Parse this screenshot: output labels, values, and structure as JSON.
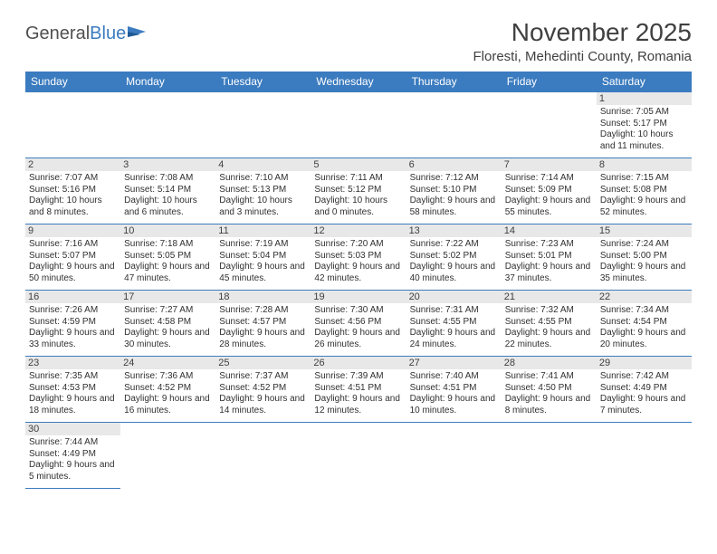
{
  "logo": {
    "text1": "General",
    "text2": "Blue"
  },
  "title": "November 2025",
  "location": "Floresti, Mehedinti County, Romania",
  "days_of_week": [
    "Sunday",
    "Monday",
    "Tuesday",
    "Wednesday",
    "Thursday",
    "Friday",
    "Saturday"
  ],
  "colors": {
    "header_bg": "#3b7bbf",
    "header_fg": "#ffffff",
    "daynum_bg": "#e8e8e8",
    "border": "#3b7bbf",
    "text": "#303030"
  },
  "layout": {
    "first_weekday_index": 6,
    "num_days": 30,
    "rows": 6,
    "cols": 7
  },
  "cells": [
    {
      "day": 1,
      "sunrise": "7:05 AM",
      "sunset": "5:17 PM",
      "daylight": "10 hours and 11 minutes."
    },
    {
      "day": 2,
      "sunrise": "7:07 AM",
      "sunset": "5:16 PM",
      "daylight": "10 hours and 8 minutes."
    },
    {
      "day": 3,
      "sunrise": "7:08 AM",
      "sunset": "5:14 PM",
      "daylight": "10 hours and 6 minutes."
    },
    {
      "day": 4,
      "sunrise": "7:10 AM",
      "sunset": "5:13 PM",
      "daylight": "10 hours and 3 minutes."
    },
    {
      "day": 5,
      "sunrise": "7:11 AM",
      "sunset": "5:12 PM",
      "daylight": "10 hours and 0 minutes."
    },
    {
      "day": 6,
      "sunrise": "7:12 AM",
      "sunset": "5:10 PM",
      "daylight": "9 hours and 58 minutes."
    },
    {
      "day": 7,
      "sunrise": "7:14 AM",
      "sunset": "5:09 PM",
      "daylight": "9 hours and 55 minutes."
    },
    {
      "day": 8,
      "sunrise": "7:15 AM",
      "sunset": "5:08 PM",
      "daylight": "9 hours and 52 minutes."
    },
    {
      "day": 9,
      "sunrise": "7:16 AM",
      "sunset": "5:07 PM",
      "daylight": "9 hours and 50 minutes."
    },
    {
      "day": 10,
      "sunrise": "7:18 AM",
      "sunset": "5:05 PM",
      "daylight": "9 hours and 47 minutes."
    },
    {
      "day": 11,
      "sunrise": "7:19 AM",
      "sunset": "5:04 PM",
      "daylight": "9 hours and 45 minutes."
    },
    {
      "day": 12,
      "sunrise": "7:20 AM",
      "sunset": "5:03 PM",
      "daylight": "9 hours and 42 minutes."
    },
    {
      "day": 13,
      "sunrise": "7:22 AM",
      "sunset": "5:02 PM",
      "daylight": "9 hours and 40 minutes."
    },
    {
      "day": 14,
      "sunrise": "7:23 AM",
      "sunset": "5:01 PM",
      "daylight": "9 hours and 37 minutes."
    },
    {
      "day": 15,
      "sunrise": "7:24 AM",
      "sunset": "5:00 PM",
      "daylight": "9 hours and 35 minutes."
    },
    {
      "day": 16,
      "sunrise": "7:26 AM",
      "sunset": "4:59 PM",
      "daylight": "9 hours and 33 minutes."
    },
    {
      "day": 17,
      "sunrise": "7:27 AM",
      "sunset": "4:58 PM",
      "daylight": "9 hours and 30 minutes."
    },
    {
      "day": 18,
      "sunrise": "7:28 AM",
      "sunset": "4:57 PM",
      "daylight": "9 hours and 28 minutes."
    },
    {
      "day": 19,
      "sunrise": "7:30 AM",
      "sunset": "4:56 PM",
      "daylight": "9 hours and 26 minutes."
    },
    {
      "day": 20,
      "sunrise": "7:31 AM",
      "sunset": "4:55 PM",
      "daylight": "9 hours and 24 minutes."
    },
    {
      "day": 21,
      "sunrise": "7:32 AM",
      "sunset": "4:55 PM",
      "daylight": "9 hours and 22 minutes."
    },
    {
      "day": 22,
      "sunrise": "7:34 AM",
      "sunset": "4:54 PM",
      "daylight": "9 hours and 20 minutes."
    },
    {
      "day": 23,
      "sunrise": "7:35 AM",
      "sunset": "4:53 PM",
      "daylight": "9 hours and 18 minutes."
    },
    {
      "day": 24,
      "sunrise": "7:36 AM",
      "sunset": "4:52 PM",
      "daylight": "9 hours and 16 minutes."
    },
    {
      "day": 25,
      "sunrise": "7:37 AM",
      "sunset": "4:52 PM",
      "daylight": "9 hours and 14 minutes."
    },
    {
      "day": 26,
      "sunrise": "7:39 AM",
      "sunset": "4:51 PM",
      "daylight": "9 hours and 12 minutes."
    },
    {
      "day": 27,
      "sunrise": "7:40 AM",
      "sunset": "4:51 PM",
      "daylight": "9 hours and 10 minutes."
    },
    {
      "day": 28,
      "sunrise": "7:41 AM",
      "sunset": "4:50 PM",
      "daylight": "9 hours and 8 minutes."
    },
    {
      "day": 29,
      "sunrise": "7:42 AM",
      "sunset": "4:49 PM",
      "daylight": "9 hours and 7 minutes."
    },
    {
      "day": 30,
      "sunrise": "7:44 AM",
      "sunset": "4:49 PM",
      "daylight": "9 hours and 5 minutes."
    }
  ],
  "labels": {
    "sunrise_prefix": "Sunrise: ",
    "sunset_prefix": "Sunset: ",
    "daylight_prefix": "Daylight: "
  }
}
